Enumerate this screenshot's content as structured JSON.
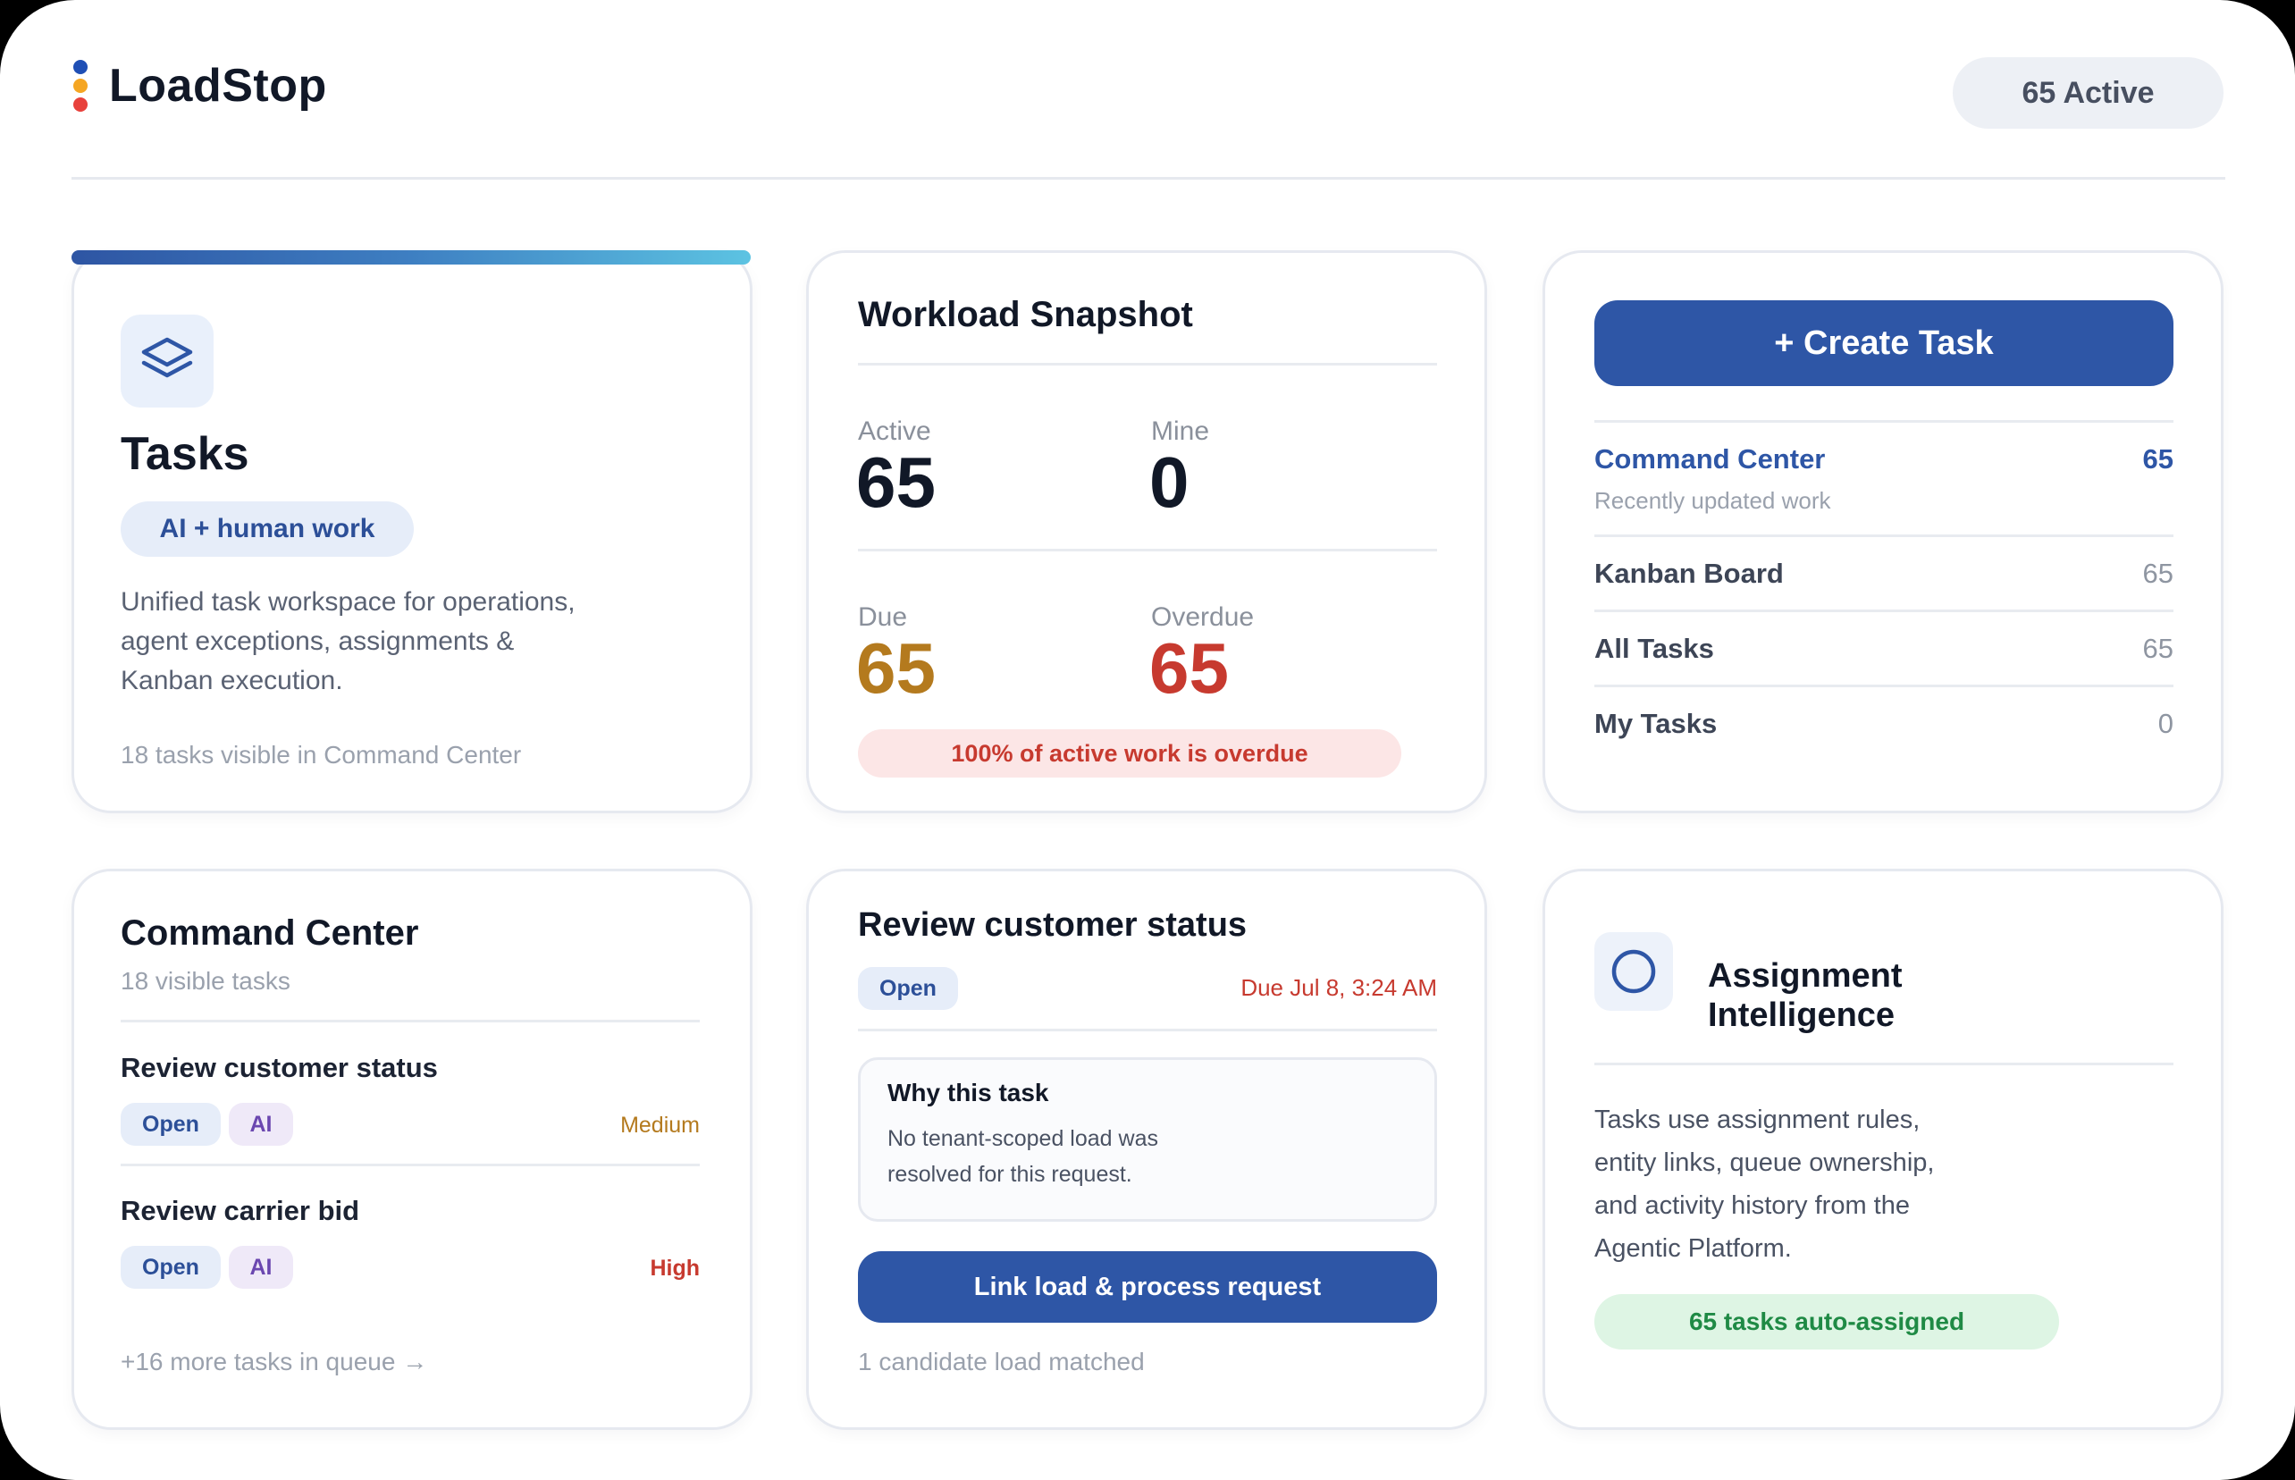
{
  "app": {
    "name": "LoadStop",
    "active_badge": "65 Active",
    "logo_colors": [
      "#1f4fb5",
      "#f5a623",
      "#e8413c"
    ]
  },
  "tasks_card": {
    "title": "Tasks",
    "chip": "AI + human work",
    "description": "Unified task workspace for operations, agent exceptions, assignments & Kanban execution.",
    "footer": "18 tasks visible in Command Center",
    "icon": "layers-icon"
  },
  "workload": {
    "title": "Workload Snapshot",
    "stats": [
      {
        "label": "Active",
        "value": "65",
        "color": "#111827"
      },
      {
        "label": "Mine",
        "value": "0",
        "color": "#111827"
      },
      {
        "label": "Due",
        "value": "65",
        "color": "#b47a1e"
      },
      {
        "label": "Overdue",
        "value": "65",
        "color": "#c73a2f"
      }
    ],
    "alert": "100% of active work is overdue"
  },
  "nav_card": {
    "create_button": "+ Create Task",
    "items": [
      {
        "label": "Command Center",
        "count": "65",
        "subtitle": "Recently updated work"
      },
      {
        "label": "Kanban Board",
        "count": "65"
      },
      {
        "label": "All Tasks",
        "count": "65"
      },
      {
        "label": "My Tasks",
        "count": "0"
      }
    ]
  },
  "command_center": {
    "title": "Command Center",
    "subtitle": "18 visible tasks",
    "tasks": [
      {
        "title": "Review customer status",
        "status": "Open",
        "tag": "AI",
        "priority": "Medium",
        "priority_color": "#b47a1e"
      },
      {
        "title": "Review carrier bid",
        "status": "Open",
        "tag": "AI",
        "priority": "High",
        "priority_color": "#c73a2f"
      }
    ],
    "more_link": "+16 more tasks in queue →"
  },
  "task_detail": {
    "title": "Review customer status",
    "status": "Open",
    "due": "Due Jul 8, 3:24 AM",
    "why_title": "Why this task",
    "why_text": "No tenant-scoped load was resolved for this request.",
    "action_button": "Link load & process request",
    "footer": "1 candidate load matched"
  },
  "assignment": {
    "title": "Assignment Intelligence",
    "description": "Tasks use assignment rules, entity links, queue ownership, and activity history from the Agentic Platform.",
    "pill": "65 tasks auto-assigned",
    "icon": "circle-icon"
  }
}
